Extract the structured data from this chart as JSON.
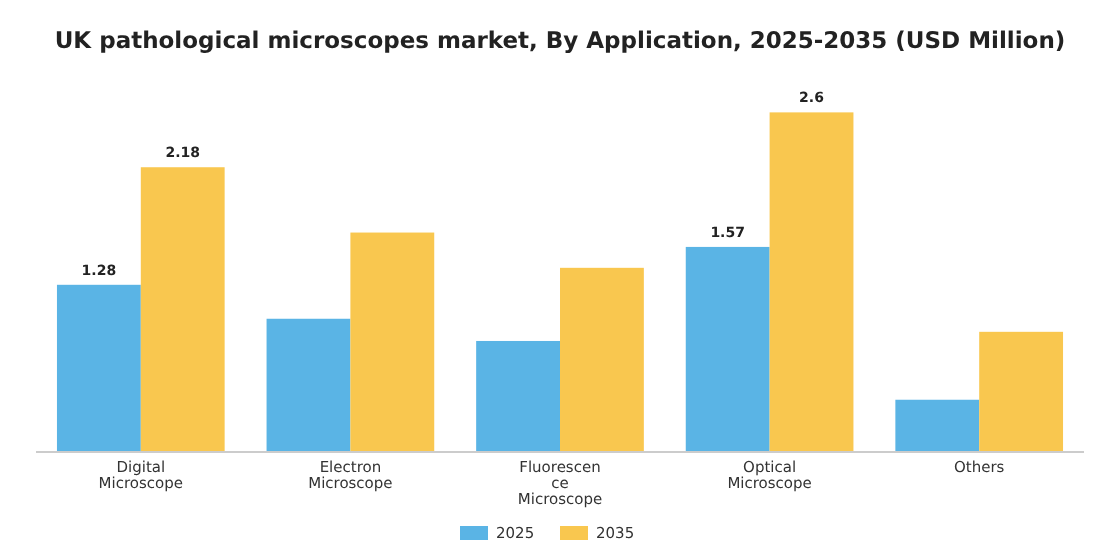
{
  "chart_data": {
    "type": "bar",
    "title": "UK pathological microscopes market, By Application, 2025-2035 (USD Million)",
    "categories": [
      "Digital Microscope",
      "Electron Microscope",
      "Fluorescence Microscope",
      "Optical Microscope",
      "Others"
    ],
    "series": [
      {
        "name": "2025",
        "color": "#5ab4e5",
        "values": [
          1.28,
          1.02,
          0.85,
          1.57,
          0.4
        ],
        "value_labels": [
          "1.28",
          null,
          null,
          "1.57",
          null
        ]
      },
      {
        "name": "2035",
        "color": "#f9c74f",
        "values": [
          2.18,
          1.68,
          1.41,
          2.6,
          0.92
        ],
        "value_labels": [
          "2.18",
          null,
          null,
          "2.6",
          null
        ]
      }
    ],
    "legend": "bottom",
    "grid": false
  }
}
